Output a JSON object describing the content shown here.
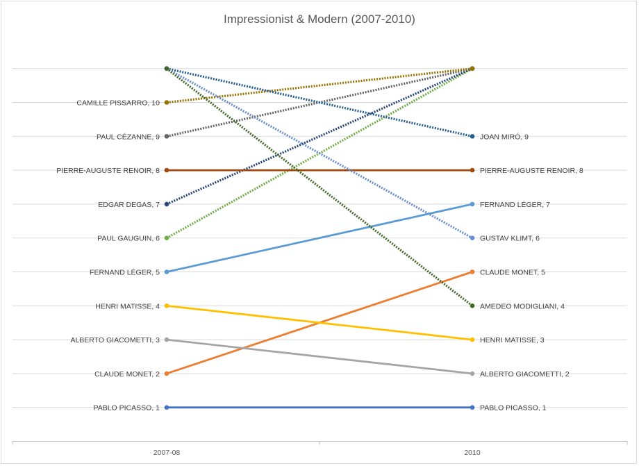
{
  "chart_data": {
    "type": "line",
    "title": "Impressionist & Modern (2007-2010)",
    "categories": [
      "2007-08",
      "2010"
    ],
    "ylim": [
      0,
      11
    ],
    "grid": true,
    "legend": "none",
    "series": [
      {
        "name": "PABLO PICASSO",
        "values": [
          1,
          1
        ],
        "color": "#4472c4",
        "style": "solid",
        "start_label": "PABLO PICASSO, 1",
        "end_label": "PABLO PICASSO, 1"
      },
      {
        "name": "CLAUDE MONET",
        "values": [
          2,
          5
        ],
        "color": "#ed7d31",
        "style": "solid",
        "start_label": "CLAUDE MONET, 2",
        "end_label": "CLAUDE MONET, 5"
      },
      {
        "name": "ALBERTO GIACOMETTI",
        "values": [
          3,
          2
        ],
        "color": "#a5a5a5",
        "style": "solid",
        "start_label": "ALBERTO GIACOMETTI, 3",
        "end_label": "ALBERTO GIACOMETTI, 2"
      },
      {
        "name": "HENRI MATISSE",
        "values": [
          4,
          3
        ],
        "color": "#ffc000",
        "style": "solid",
        "start_label": "HENRI MATISSE, 4",
        "end_label": "HENRI MATISSE, 3"
      },
      {
        "name": "FERNAND LÉGER",
        "values": [
          5,
          7
        ],
        "color": "#5b9bd5",
        "style": "solid",
        "start_label": "FERNAND LÉGER, 5",
        "end_label": "FERNAND LÉGER, 7"
      },
      {
        "name": "PAUL GAUGUIN",
        "values": [
          6,
          11
        ],
        "color": "#70ad47",
        "style": "dotted",
        "start_label": "PAUL GAUGUIN, 6",
        "end_label": ""
      },
      {
        "name": "EDGAR DEGAS",
        "values": [
          7,
          11
        ],
        "color": "#264478",
        "style": "dotted",
        "start_label": "EDGAR DEGAS, 7",
        "end_label": ""
      },
      {
        "name": "PIERRE-AUGUSTE RENOIR",
        "values": [
          8,
          8
        ],
        "color": "#9e480e",
        "style": "solid",
        "start_label": "PIERRE-AUGUSTE RENOIR, 8",
        "end_label": "PIERRE-AUGUSTE RENOIR, 8"
      },
      {
        "name": "PAUL CÉZANNE",
        "values": [
          9,
          11
        ],
        "color": "#636363",
        "style": "dotted",
        "start_label": "PAUL CÉZANNE, 9",
        "end_label": ""
      },
      {
        "name": "CAMILLE PISSARRO",
        "values": [
          10,
          11
        ],
        "color": "#997300",
        "style": "dotted",
        "start_label": "CAMILLE PISSARRO, 10",
        "end_label": ""
      },
      {
        "name": "JOAN MIRÓ",
        "values": [
          11,
          9
        ],
        "color": "#255e91",
        "style": "dotted",
        "start_label": "",
        "end_label": "JOAN MIRÓ, 9"
      },
      {
        "name": "GUSTAV KLIMT",
        "values": [
          11,
          6
        ],
        "color": "#698ed0",
        "style": "dotted",
        "start_label": "",
        "end_label": "GUSTAV KLIMT, 6"
      },
      {
        "name": "AMEDEO MODIGLIANI",
        "values": [
          11,
          4
        ],
        "color": "#43682b",
        "style": "dotted",
        "start_label": "",
        "end_label": "AMEDEO MODIGLIANI, 4"
      }
    ]
  }
}
